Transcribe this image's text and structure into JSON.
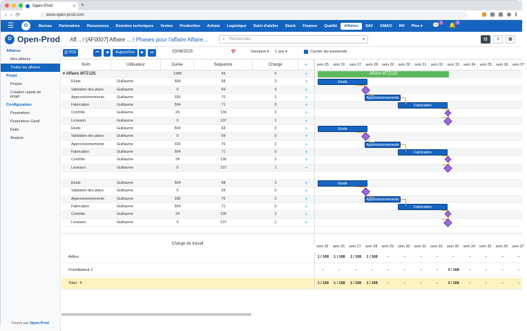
{
  "browser": {
    "tab_title": "Open-Prod",
    "url": "www.open-prod.com",
    "new_tab": "+",
    "close": "x"
  },
  "topnav": {
    "items": [
      "Bureau",
      "Partenaires",
      "Ressources",
      "Données techniques",
      "Ventes",
      "Production",
      "Achats",
      "Logistique",
      "Suivi d'atelier",
      "Stock",
      "Finance",
      "Qualité",
      "Affaires",
      "SAV",
      "GMAO",
      "RH",
      "Plus ▾"
    ],
    "active": "Affaires",
    "badge1": "2",
    "badge2": "0"
  },
  "header": {
    "brand": "Open-Prod",
    "breadcrumb1": "Aff...",
    "breadcrumb2": "[AF0007] Affaire ...",
    "breadcrumb3": "Phases pour l'affaire Affaire...",
    "search_placeholder": "Rechercher..."
  },
  "sidebar": {
    "sections": [
      {
        "title": "Affaires",
        "items": [
          "Mes affaires",
          "Toutes les affaires"
        ]
      },
      {
        "title": "Projet",
        "items": [
          "Projets",
          "Création rapide de projet"
        ]
      },
      {
        "title": "Configuration",
        "items": [
          "Paramètres",
          "Paramètres Gantt",
          "Etats",
          "Analyse"
        ]
      }
    ],
    "active_item": "Toutes les affaires",
    "footer_prefix": "Fourni par",
    "footer_brand": "Open-Prod"
  },
  "toolbar": {
    "pdf": "PDF",
    "today": "Aujourd'hui",
    "date": "20/06/2025",
    "period": "Semaine ▾",
    "range": "1 ans ▾",
    "hide_weekends": "Cacher les weekends"
  },
  "grid": {
    "columns": [
      "Nom",
      "Utilisateur",
      "Durée",
      "Séquence",
      "Charge",
      "+"
    ],
    "group": "Affaire MTZ125",
    "group_values": [
      "1368",
      "65",
      "0"
    ],
    "rows": [
      [
        "Etude",
        "Guillaume",
        "504",
        "68",
        "3"
      ],
      [
        "Validation des plans",
        "Guillaume",
        "0",
        "69",
        "0"
      ],
      [
        "Approvisionnements",
        "Guillaume",
        "336",
        "70",
        "2"
      ],
      [
        "Fabrication",
        "Guillaume",
        "504",
        "71",
        "0"
      ],
      [
        "Contrôle",
        "Guillaume",
        "24",
        "136",
        "2"
      ],
      [
        "Livraison",
        "Guillaume",
        "0",
        "137",
        "1"
      ],
      [
        "Etude",
        "Guillaume",
        "504",
        "68",
        "3"
      ],
      [
        "Validation des plans",
        "Guillaume",
        "0",
        "69",
        "0"
      ],
      [
        "Approvisionnements",
        "Guillaume",
        "336",
        "70",
        "2"
      ],
      [
        "Fabrication",
        "Guillaume",
        "504",
        "71",
        "0"
      ],
      [
        "Contrôle",
        "Guillaume",
        "24",
        "136",
        "2"
      ],
      [
        "Livraison",
        "Guillaume",
        "0",
        "137",
        "1"
      ],
      [
        "",
        "",
        "",
        "",
        ""
      ],
      [
        "Etude",
        "Guillaume",
        "504",
        "68",
        "3"
      ],
      [
        "Validation des plans",
        "Guillaume",
        "0",
        "69",
        "0"
      ],
      [
        "Approvisionnements",
        "Guillaume",
        "336",
        "70",
        "2"
      ],
      [
        "Fabrication",
        "Guillaume",
        "504",
        "71",
        "0"
      ],
      [
        "Contrôle",
        "Guillaume",
        "24",
        "136",
        "2"
      ],
      [
        "Livraison",
        "Guillaume",
        "0",
        "137",
        "1"
      ]
    ]
  },
  "gantt": {
    "weeks": [
      "sem 25",
      "sem 26",
      "sem 27",
      "sem 28",
      "sem 29",
      "sem 30",
      "sem 31",
      "sem 32",
      "sem 33",
      "sem 34",
      "sem 35",
      "sem 36",
      "sem 37"
    ],
    "group_bar": "Affaire MTZ125",
    "bar_labels": {
      "etude": "Etude",
      "appro": "Approvisionnements",
      "fab": "Fabrication"
    }
  },
  "workload": {
    "title": "Charge de travail",
    "weeks": [
      "sem 25",
      "sem 26",
      "sem 27",
      "sem 28",
      "sem 29",
      "sem 30",
      "sem 31",
      "sem 32",
      "sem 33",
      "sem 34",
      "sem 35",
      "sem 36",
      "sem 37"
    ],
    "rows": [
      {
        "label": "Arthur",
        "values": [
          "1 / 168",
          "1 / 168",
          "1 / 168",
          "1 / 168",
          "–",
          "–",
          "–",
          "–",
          "–",
          "–",
          "–",
          "–",
          "–"
        ]
      },
      {
        "label": "Contributeur 1",
        "values": [
          "–",
          "–",
          "–",
          "–",
          "–",
          "–",
          "–",
          "–",
          "2 / 168",
          "–",
          "–",
          "–",
          "–"
        ]
      },
      {
        "label": "Total : 5",
        "values": [
          "1 / 168",
          "1 / 168",
          "1 / 168",
          "1 / 168",
          "–",
          "–",
          "–",
          "–",
          "2 / 168",
          "–",
          "–",
          "–",
          "–"
        ]
      }
    ]
  }
}
